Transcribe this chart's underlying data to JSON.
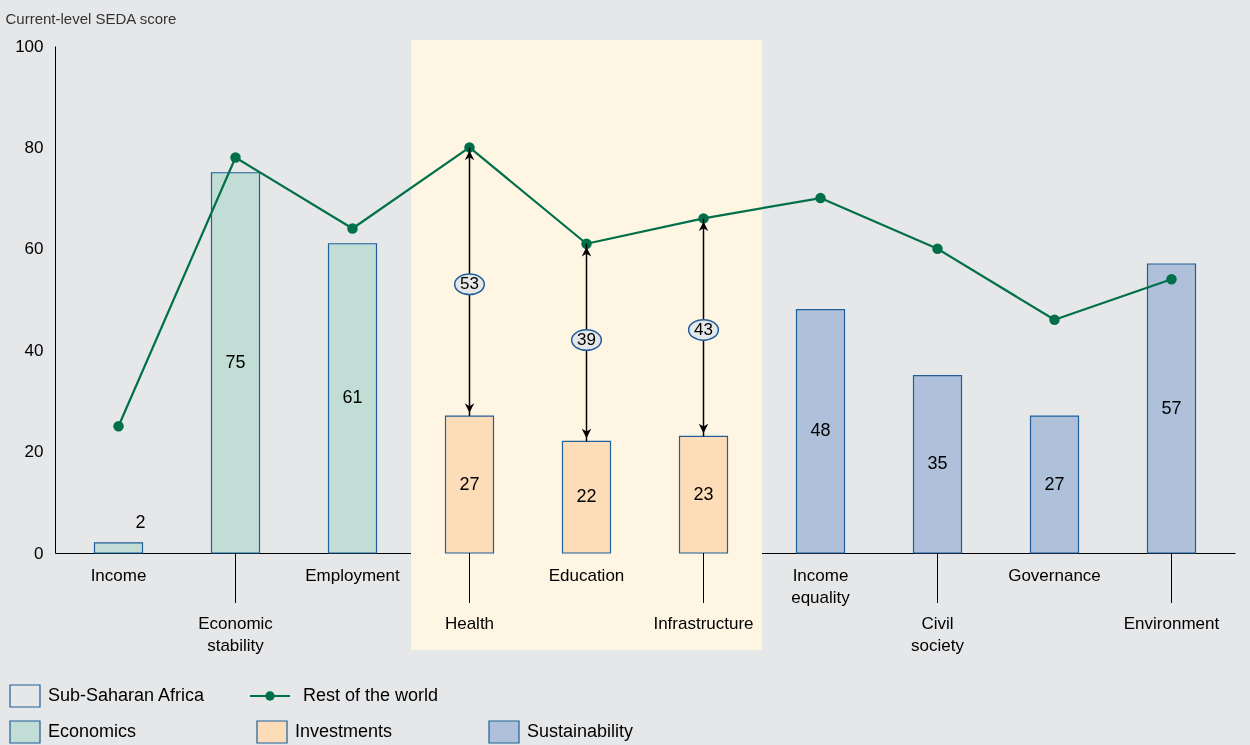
{
  "chart_data": {
    "type": "bar",
    "ylabel": "Current-level SEDA score",
    "categories": [
      "Income",
      "Economic stability",
      "Employment",
      "Health",
      "Education",
      "Infrastructure",
      "Income equality",
      "Civil society",
      "Governance",
      "Environment"
    ],
    "ylim": [
      0,
      100
    ],
    "yticks": [
      0,
      20,
      40,
      60,
      80,
      100
    ],
    "grid": false,
    "legend": "bottom",
    "marker": "circle",
    "line_style": "solid",
    "series": [
      {
        "name": "Economics",
        "color": "#c1ddd5",
        "values": [
          2,
          75,
          61,
          null,
          null,
          null,
          null,
          null,
          null,
          null
        ],
        "value_labels": [
          "2",
          "75",
          "61",
          null,
          null,
          null,
          null,
          null,
          null,
          null
        ]
      },
      {
        "name": "Investments",
        "type": "bar",
        "color": "#fddcb8",
        "values": [
          null,
          null,
          null,
          27,
          22,
          23,
          null,
          null,
          null,
          null
        ],
        "value_labels": [
          null,
          null,
          null,
          "27",
          "22",
          "23",
          null,
          null,
          null,
          null
        ]
      },
      {
        "name": "Sustainability",
        "type": "bar",
        "color": "#afc1da",
        "values": [
          null,
          null,
          null,
          null,
          null,
          null,
          48,
          35,
          27,
          57
        ],
        "value_labels": [
          null,
          null,
          null,
          null,
          null,
          null,
          "48",
          "35",
          "27",
          "57"
        ]
      },
      {
        "name": "Rest of the world",
        "type": "line",
        "color": "#00704a",
        "values": [
          25,
          78,
          64,
          80,
          61,
          66,
          70,
          60,
          46,
          54
        ]
      }
    ],
    "bands": [
      {
        "axis": "x",
        "from": "Health",
        "to": "Infrastructure",
        "color": "#fff5e3"
      }
    ],
    "annotations": [
      "Sub-Saharan Africa",
      {
        "text": "53",
        "x": "Health",
        "y": 53
      },
      {
        "text": "39",
        "x": "Education",
        "y": 42
      },
      {
        "text": "43",
        "x": "Infrastructure",
        "y": 44
      }
    ]
  }
}
